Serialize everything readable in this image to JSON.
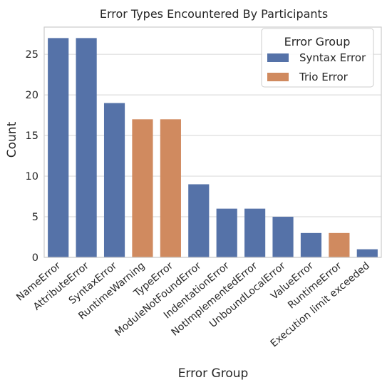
{
  "chart_data": {
    "type": "bar",
    "title": "Error Types Encountered By Participants",
    "xlabel": "Error Group",
    "ylabel": "Count",
    "ylim": [
      0,
      28.35
    ],
    "yticks": [
      0,
      5,
      10,
      15,
      20,
      25
    ],
    "grid": true,
    "legend": {
      "title": "Error Group",
      "placement": "top-right",
      "entries": [
        {
          "name": "Syntax Error",
          "color": "#5572a8"
        },
        {
          "name": "Trio Error",
          "color": "#d08a5f"
        }
      ]
    },
    "categories": [
      "NameError",
      "AttributeError",
      "SyntaxError",
      "RuntimeWarning",
      "TypeError",
      "ModuleNotFoundError",
      "IndentationError",
      "NotImplementedError",
      "UnboundLocalError",
      "ValueError",
      "RuntimeError",
      "Execution limit exceeded"
    ],
    "values": [
      27,
      27,
      19,
      17,
      17,
      9,
      6,
      6,
      5,
      3,
      3,
      1
    ],
    "groups": [
      "Syntax Error",
      "Syntax Error",
      "Syntax Error",
      "Trio Error",
      "Trio Error",
      "Syntax Error",
      "Syntax Error",
      "Syntax Error",
      "Syntax Error",
      "Syntax Error",
      "Trio Error",
      "Syntax Error"
    ]
  }
}
